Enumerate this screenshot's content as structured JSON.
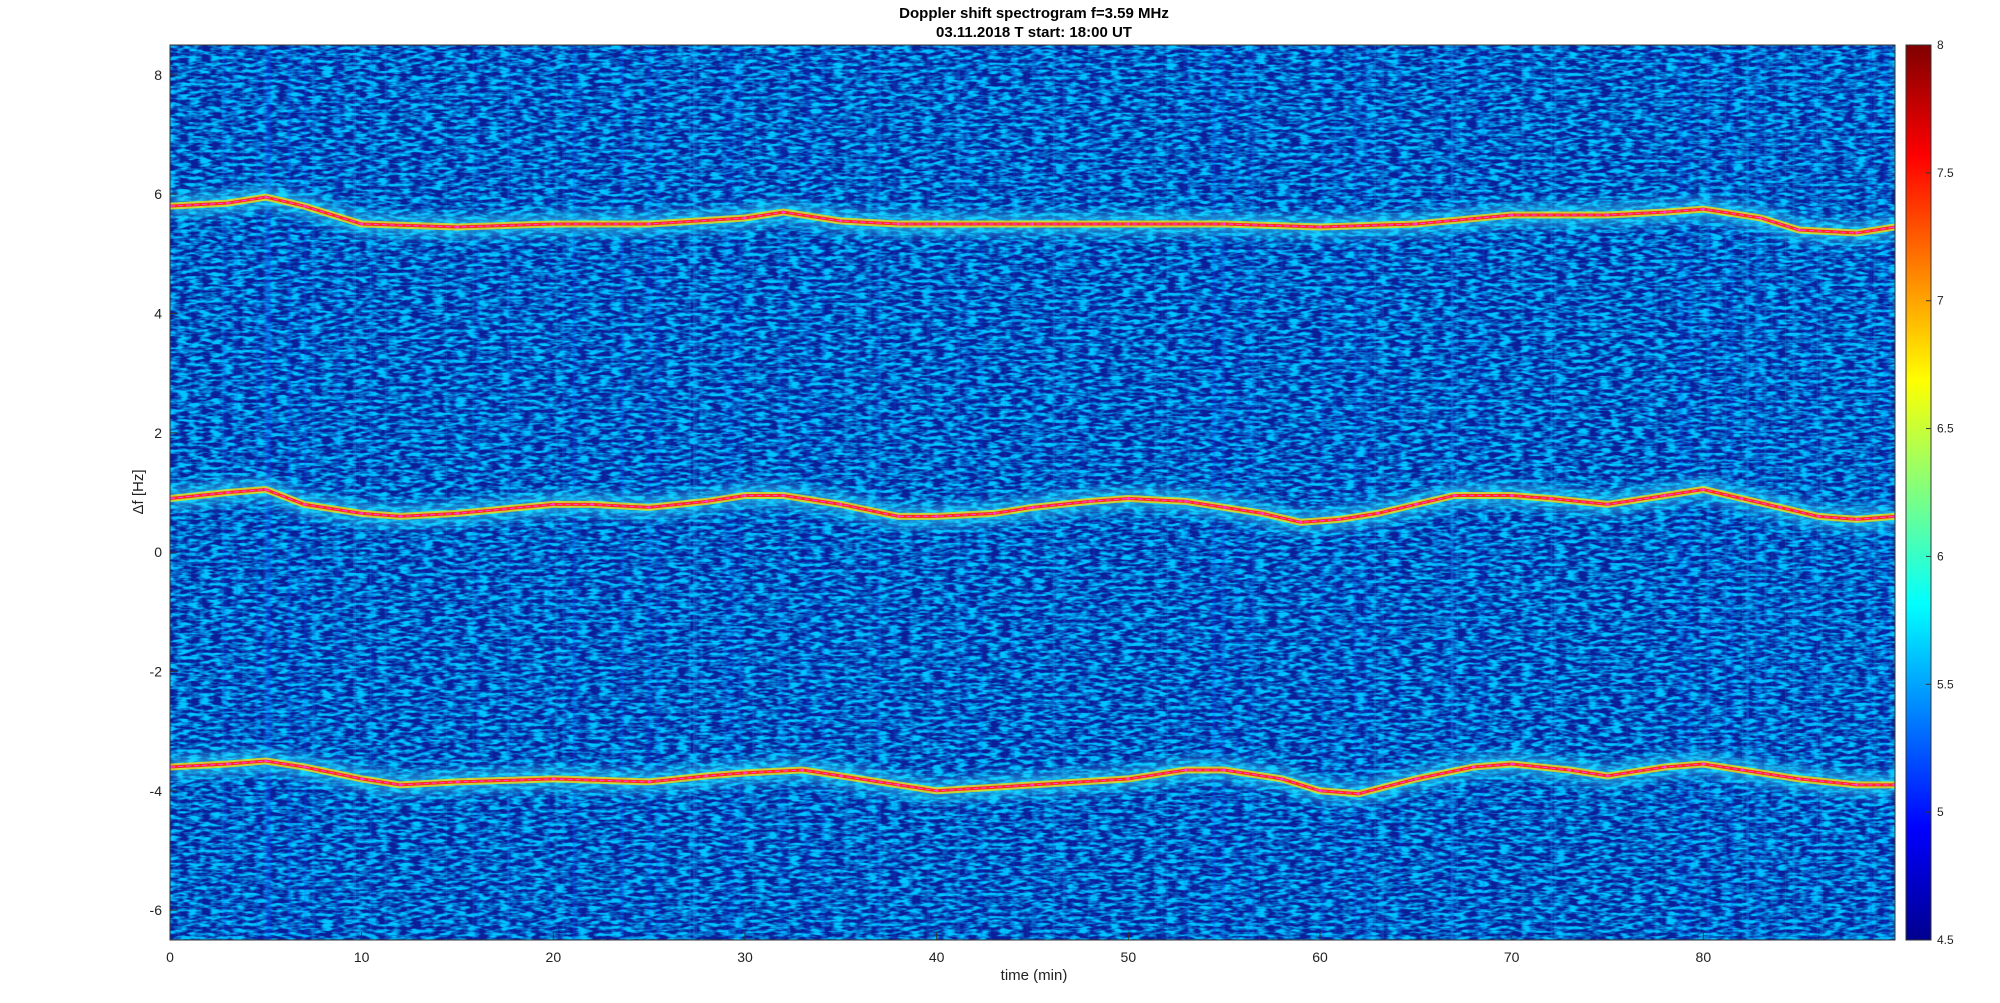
{
  "chart_data": {
    "type": "heatmap",
    "title": "Doppler shift spectrogram f=3.59 MHz",
    "subtitle": "03.11.2018   T start: 18:00 UT",
    "xlabel": "time (min)",
    "ylabel": "Δf [Hz]",
    "xlim": [
      0,
      90
    ],
    "ylim": [
      -6.5,
      8.5
    ],
    "xticks": [
      0,
      10,
      20,
      30,
      40,
      50,
      60,
      70,
      80
    ],
    "yticks": [
      -6,
      -4,
      -2,
      0,
      2,
      4,
      6,
      8
    ],
    "grid": false,
    "colormap": "jet",
    "colorbar": {
      "range": [
        4.5,
        8
      ],
      "ticks": [
        "4.5",
        "5",
        "5.5",
        "6",
        "6.5",
        "7",
        "7.5",
        "8"
      ]
    },
    "series": [
      {
        "x": [
          0,
          3,
          5,
          7,
          10,
          15,
          20,
          25,
          30,
          32,
          35,
          38,
          40,
          45,
          50,
          55,
          60,
          65,
          70,
          75,
          78,
          80,
          83,
          85,
          88,
          90
        ],
        "y": [
          5.8,
          5.85,
          5.95,
          5.8,
          5.5,
          5.45,
          5.5,
          5.5,
          5.6,
          5.7,
          5.55,
          5.5,
          5.5,
          5.5,
          5.5,
          5.5,
          5.45,
          5.5,
          5.65,
          5.65,
          5.7,
          5.75,
          5.6,
          5.4,
          5.35,
          5.45
        ]
      },
      {
        "x": [
          0,
          3,
          5,
          7,
          10,
          12,
          15,
          20,
          22,
          25,
          28,
          30,
          32,
          35,
          38,
          40,
          43,
          45,
          48,
          50,
          53,
          55,
          57,
          59,
          61,
          63,
          65,
          67,
          70,
          72,
          75,
          78,
          80,
          82,
          84,
          86,
          88,
          90
        ],
        "y": [
          0.9,
          1.0,
          1.05,
          0.8,
          0.65,
          0.6,
          0.65,
          0.8,
          0.8,
          0.75,
          0.85,
          0.95,
          0.95,
          0.8,
          0.6,
          0.6,
          0.65,
          0.75,
          0.85,
          0.9,
          0.85,
          0.75,
          0.65,
          0.5,
          0.55,
          0.65,
          0.8,
          0.95,
          0.95,
          0.9,
          0.8,
          0.95,
          1.05,
          0.9,
          0.75,
          0.6,
          0.55,
          0.6
        ]
      },
      {
        "x": [
          0,
          3,
          5,
          7,
          10,
          12,
          15,
          20,
          25,
          28,
          30,
          33,
          35,
          38,
          40,
          45,
          50,
          53,
          55,
          58,
          60,
          62,
          65,
          68,
          70,
          73,
          75,
          78,
          80,
          82,
          85,
          88,
          90
        ],
        "y": [
          -3.6,
          -3.55,
          -3.5,
          -3.6,
          -3.8,
          -3.9,
          -3.85,
          -3.8,
          -3.85,
          -3.75,
          -3.7,
          -3.65,
          -3.75,
          -3.9,
          -4.0,
          -3.9,
          -3.8,
          -3.65,
          -3.65,
          -3.8,
          -4.0,
          -4.05,
          -3.8,
          -3.6,
          -3.55,
          -3.65,
          -3.75,
          -3.6,
          -3.55,
          -3.65,
          -3.8,
          -3.9,
          -3.9
        ]
      }
    ]
  }
}
